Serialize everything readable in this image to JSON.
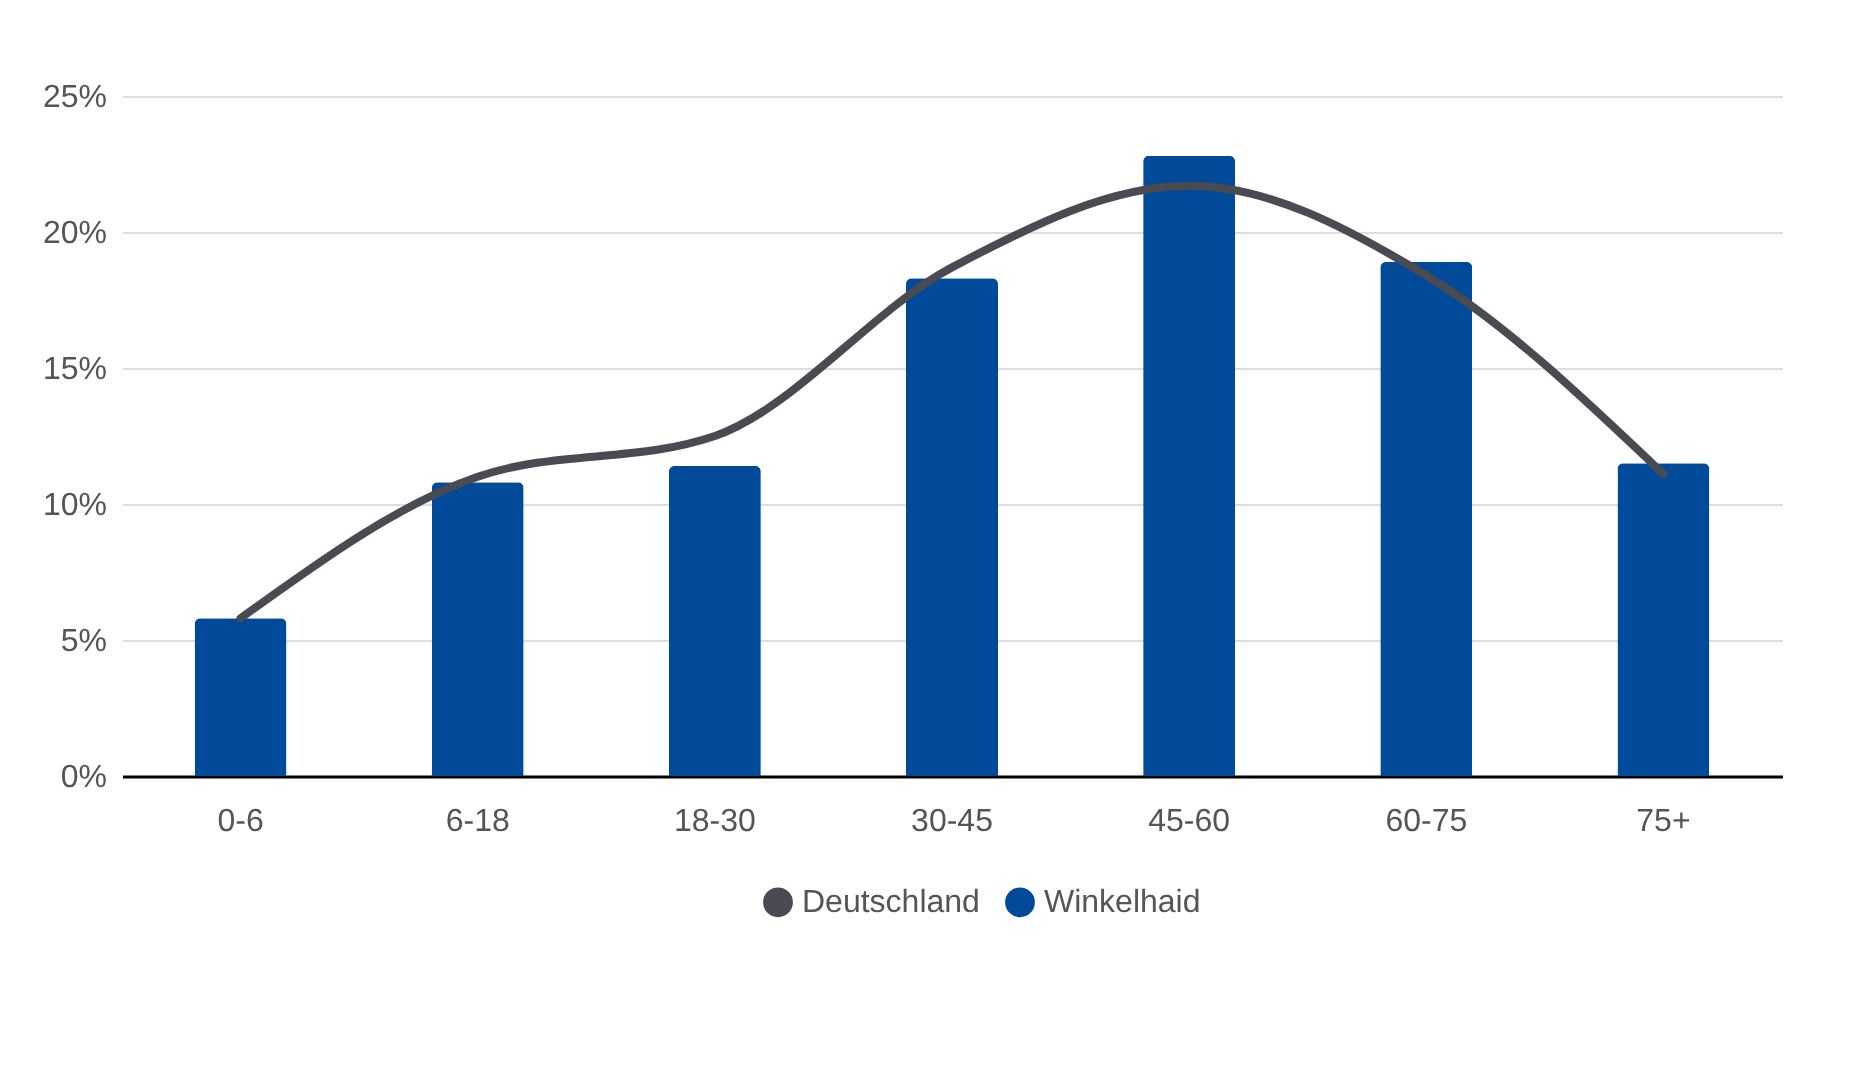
{
  "chart_data": {
    "type": "bar",
    "categories": [
      "0-6",
      "6-18",
      "18-30",
      "30-45",
      "45-60",
      "60-75",
      "75+"
    ],
    "series": [
      {
        "name": "Deutschland",
        "type": "line",
        "color": "#4a4a52",
        "values": [
          5.8,
          11.0,
          12.5,
          18.7,
          21.7,
          18.4,
          11.1
        ]
      },
      {
        "name": "Winkelhaid",
        "color": "#004a99",
        "values": [
          5.8,
          10.8,
          11.4,
          18.3,
          22.8,
          18.9,
          11.5
        ]
      }
    ],
    "ylim": [
      0,
      25
    ],
    "yticks": [
      {
        "value": 0,
        "label": "0%"
      },
      {
        "value": 5,
        "label": "5%"
      },
      {
        "value": 10,
        "label": "10%"
      },
      {
        "value": 15,
        "label": "15%"
      },
      {
        "value": 20,
        "label": "20%"
      },
      {
        "value": 25,
        "label": "25%"
      }
    ],
    "grid": "y",
    "legend": "bottom",
    "marker": "none",
    "line_style": "solid"
  }
}
